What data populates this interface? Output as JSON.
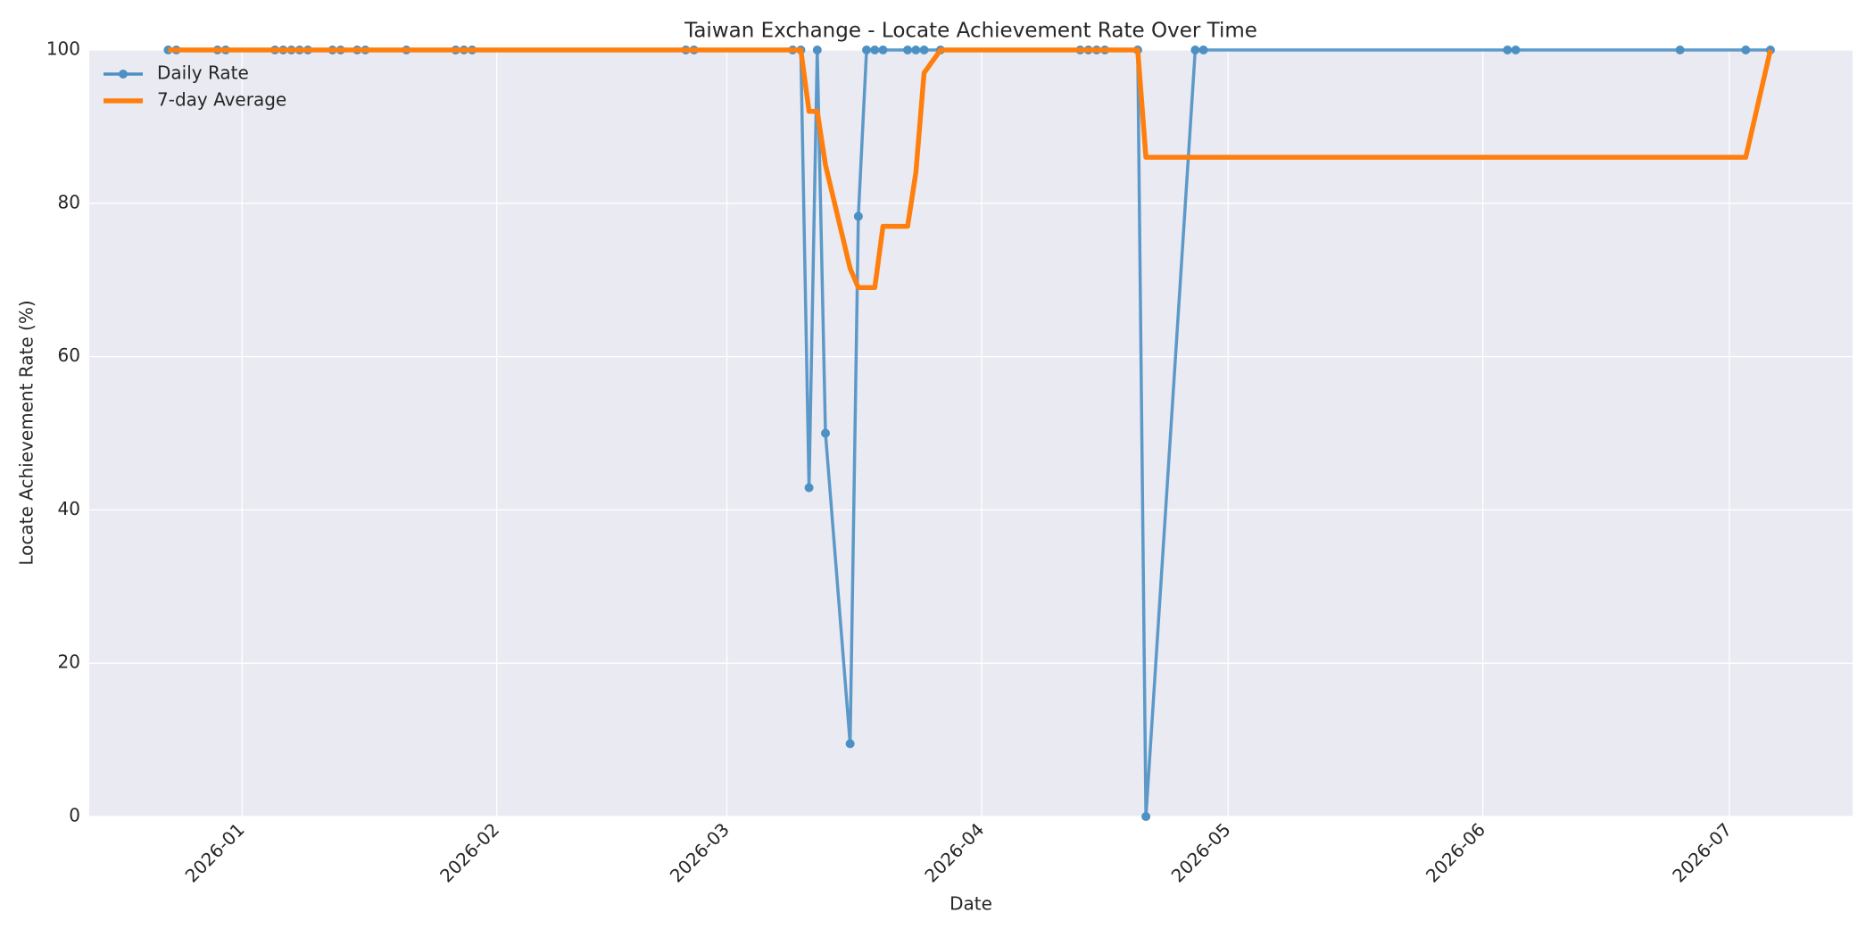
{
  "chart_data": {
    "type": "line",
    "title": "Taiwan Exchange - Locate Achievement Rate Over Time",
    "xlabel": "Date",
    "ylabel": "Locate Achievement Rate (%)",
    "x": [
      -9,
      -8,
      -3,
      -2,
      4,
      5,
      6,
      7,
      8,
      11,
      12,
      14,
      15,
      20,
      26,
      27,
      28,
      54,
      55,
      67,
      68,
      69,
      70,
      71,
      74,
      75,
      76,
      77,
      78,
      81,
      82,
      83,
      85,
      102,
      103,
      104,
      105,
      109,
      110,
      116,
      117,
      154,
      155,
      175,
      183,
      186
    ],
    "series": [
      {
        "name": "Daily Rate",
        "color": "#4c90c4",
        "marker": true,
        "values": [
          100,
          100,
          100,
          100,
          100,
          100,
          100,
          100,
          100,
          100,
          100,
          100,
          100,
          100,
          100,
          100,
          100,
          100,
          100,
          100,
          100,
          42.9,
          100,
          50,
          9.5,
          78.3,
          100,
          100,
          100,
          100,
          100,
          100,
          100,
          100,
          100,
          100,
          100,
          100,
          0,
          100,
          100,
          100,
          100,
          100,
          100,
          100
        ]
      },
      {
        "name": "7-day Average",
        "color": "#ff7f0e",
        "marker": false,
        "values": [
          100,
          100,
          100,
          100,
          100,
          100,
          100,
          100,
          100,
          100,
          100,
          100,
          100,
          100,
          100,
          100,
          100,
          100,
          100,
          100,
          100,
          92,
          92,
          85,
          71.5,
          69,
          69,
          69,
          77,
          77,
          84,
          97,
          100,
          100,
          100,
          100,
          100,
          100,
          86,
          86,
          86,
          86,
          86,
          86,
          86,
          100
        ]
      }
    ],
    "xlim": [
      -18.6,
      196
    ],
    "xticks": [
      {
        "value": 0,
        "label": "2026-01"
      },
      {
        "value": 31,
        "label": "2026-02"
      },
      {
        "value": 59,
        "label": "2026-03"
      },
      {
        "value": 90,
        "label": "2026-04"
      },
      {
        "value": 120,
        "label": "2026-05"
      },
      {
        "value": 151,
        "label": "2026-06"
      },
      {
        "value": 181,
        "label": "2026-07"
      }
    ],
    "ylim": [
      0,
      100
    ],
    "yticks": [
      0,
      20,
      40,
      60,
      80,
      100
    ],
    "grid": true,
    "legend": "upper left"
  }
}
